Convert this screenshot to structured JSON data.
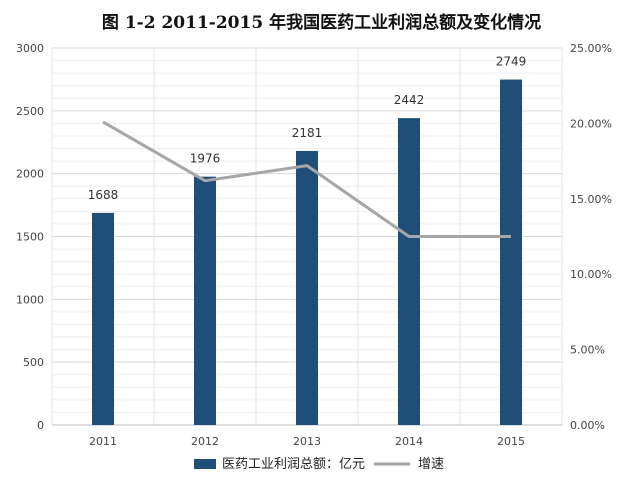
{
  "chart_data": {
    "type": "bar",
    "title": "图 1-2 2011-2015 年我国医药工业利润总额及变化情况",
    "categories": [
      "2011",
      "2012",
      "2013",
      "2014",
      "2015"
    ],
    "series": [
      {
        "name": "医药工业利润总额：亿元",
        "type": "bar",
        "axis": "left",
        "color": "#1f4e79",
        "values": [
          1688,
          1976,
          2181,
          2442,
          2749
        ],
        "data_labels": [
          "1688",
          "1976",
          "2181",
          "2442",
          "2749"
        ]
      },
      {
        "name": "增速",
        "type": "line",
        "axis": "right",
        "color": "#a6a6a6",
        "values": [
          0.201,
          0.162,
          0.172,
          0.125,
          0.125
        ]
      }
    ],
    "y_left": {
      "ylim": [
        0,
        3000
      ],
      "ticks": [
        0,
        500,
        1000,
        1500,
        2000,
        2500,
        3000
      ],
      "tick_labels": [
        "0",
        "500",
        "1000",
        "1500",
        "2000",
        "2500",
        "3000"
      ]
    },
    "y_right": {
      "ylim": [
        0,
        0.25
      ],
      "ticks": [
        0,
        0.05,
        0.1,
        0.15,
        0.2,
        0.25
      ],
      "tick_labels": [
        "0.00%",
        "5.00%",
        "10.00%",
        "15.00%",
        "20.00%",
        "25.00%"
      ]
    },
    "grid": true,
    "legend": {
      "position": "bottom"
    }
  }
}
